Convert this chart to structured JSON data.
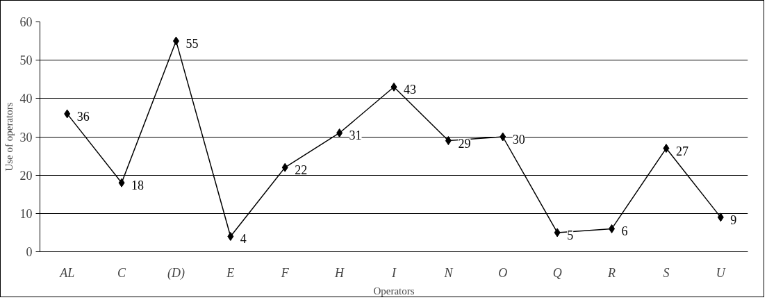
{
  "chart_data": {
    "type": "line",
    "xlabel": "Operators",
    "ylabel": "Use of operators",
    "categories": [
      "AL",
      "C",
      "(D)",
      "E",
      "F",
      "H",
      "I",
      "N",
      "O",
      "Q",
      "R",
      "S",
      "U"
    ],
    "series": [
      {
        "color": "#000000",
        "values": [
          36,
          18,
          55,
          4,
          22,
          31,
          43,
          29,
          30,
          5,
          6,
          27,
          9
        ]
      }
    ],
    "ylim": [
      0,
      60
    ],
    "yticks": [
      0,
      10,
      20,
      30,
      40,
      50,
      60
    ],
    "grid": "y",
    "marker": "diamond",
    "line_style": "solid",
    "data_labels": true
  }
}
